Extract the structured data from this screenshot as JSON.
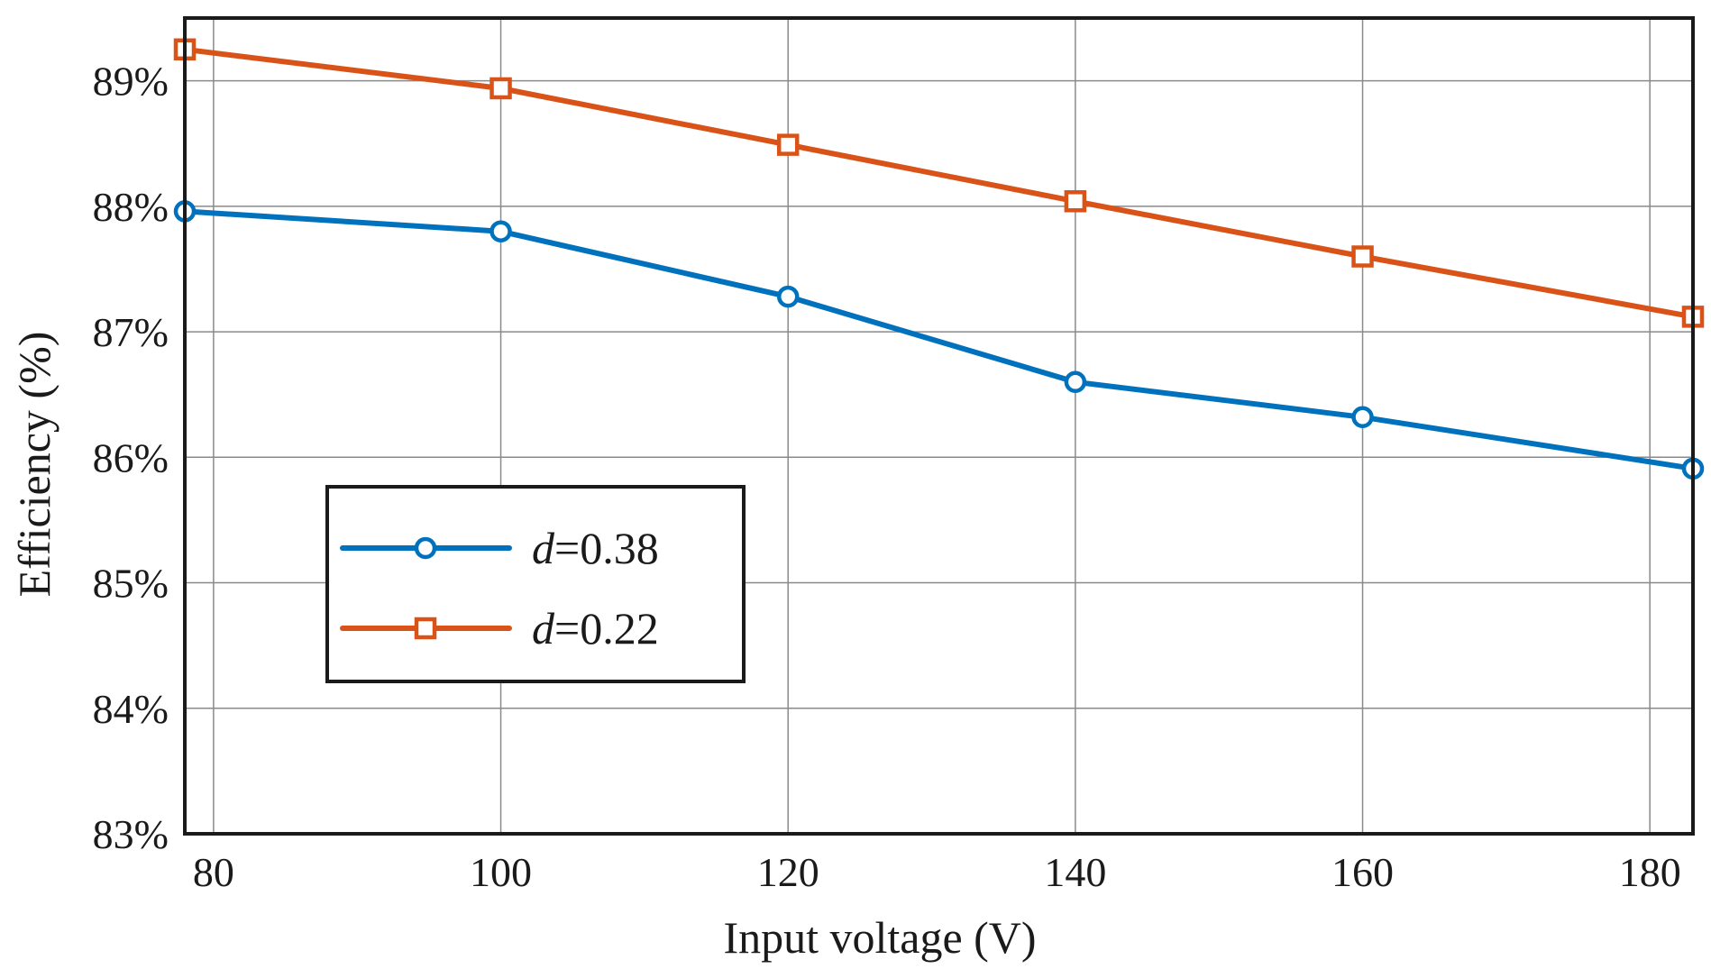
{
  "chart_data": {
    "type": "line",
    "xlabel": "Input voltage (V)",
    "ylabel": "Efficiency (%)",
    "xlim": [
      78,
      183
    ],
    "ylim": [
      83,
      89.5
    ],
    "x_ticks": [
      80,
      100,
      120,
      140,
      160,
      180
    ],
    "y_ticks": [
      83,
      84,
      85,
      86,
      87,
      88,
      89
    ],
    "y_tick_labels": [
      "83%",
      "84%",
      "85%",
      "86%",
      "87%",
      "88%",
      "89%"
    ],
    "grid": true,
    "legend_position": "lower-left",
    "series": [
      {
        "legend_var": "d",
        "legend_value": "=0.38",
        "marker": "circle",
        "color": "#0072BD",
        "x": [
          78,
          100,
          120,
          140,
          160,
          183
        ],
        "y": [
          87.96,
          87.8,
          87.28,
          86.6,
          86.32,
          85.91
        ]
      },
      {
        "legend_var": "d",
        "legend_value": "=0.22",
        "marker": "square",
        "color": "#D95319",
        "x": [
          78,
          100,
          120,
          140,
          160,
          183
        ],
        "y": [
          89.25,
          88.94,
          88.49,
          88.04,
          87.6,
          87.12
        ]
      }
    ]
  }
}
